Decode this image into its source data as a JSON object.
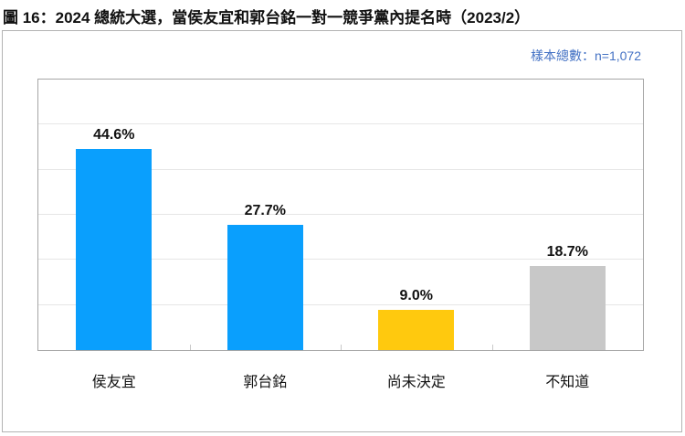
{
  "title": "圖 16：2024 總統大選，當侯友宜和郭台銘一對一競爭黨內提名時（2023/2）",
  "sample_label": "樣本總數：n=1,072",
  "colors": {
    "blue": "#0a9ffd",
    "yellow": "#ffc90e",
    "gray": "#c8c8c8"
  },
  "chart_data": {
    "type": "bar",
    "title": "圖 16：2024 總統大選，當侯友宜和郭台銘一對一競爭黨內提名時（2023/2）",
    "subtitle": "樣本總數：n=1,072",
    "categories": [
      "侯友宜",
      "郭台銘",
      "尚未決定",
      "不知道"
    ],
    "values": [
      44.6,
      27.7,
      9.0,
      18.7
    ],
    "value_labels": [
      "44.6%",
      "27.7%",
      "9.0%",
      "18.7%"
    ],
    "bar_colors": [
      "#0a9ffd",
      "#0a9ffd",
      "#ffc90e",
      "#c8c8c8"
    ],
    "xlabel": "",
    "ylabel": "",
    "ylim": [
      0,
      60
    ],
    "grid": true,
    "legend": "none"
  }
}
